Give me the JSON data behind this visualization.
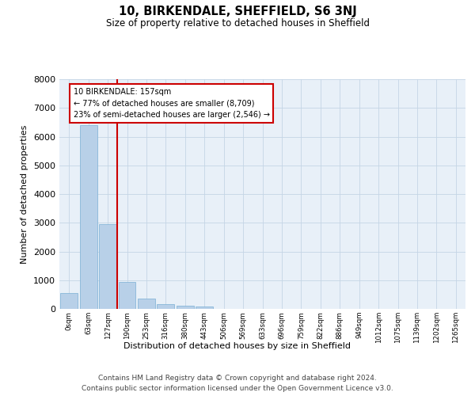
{
  "title": "10, BIRKENDALE, SHEFFIELD, S6 3NJ",
  "subtitle": "Size of property relative to detached houses in Sheffield",
  "xlabel": "Distribution of detached houses by size in Sheffield",
  "ylabel": "Number of detached properties",
  "footer_line1": "Contains HM Land Registry data © Crown copyright and database right 2024.",
  "footer_line2": "Contains public sector information licensed under the Open Government Licence v3.0.",
  "annotation_line1": "10 BIRKENDALE: 157sqm",
  "annotation_line2": "← 77% of detached houses are smaller (8,709)",
  "annotation_line3": "23% of semi-detached houses are larger (2,546) →",
  "bar_labels": [
    "0sqm",
    "63sqm",
    "127sqm",
    "190sqm",
    "253sqm",
    "316sqm",
    "380sqm",
    "443sqm",
    "506sqm",
    "569sqm",
    "633sqm",
    "696sqm",
    "759sqm",
    "822sqm",
    "886sqm",
    "949sqm",
    "1012sqm",
    "1075sqm",
    "1139sqm",
    "1202sqm",
    "1265sqm"
  ],
  "bar_values": [
    560,
    6400,
    2950,
    950,
    360,
    175,
    100,
    80,
    0,
    0,
    0,
    0,
    0,
    0,
    0,
    0,
    0,
    0,
    0,
    0,
    0
  ],
  "bar_color": "#b8d0e8",
  "bar_edge_color": "#7aafd4",
  "vline_color": "#cc0000",
  "annotation_box_color": "#cc0000",
  "background_color": "#e8f0f8",
  "grid_color": "#c5d5e5",
  "ylim": [
    0,
    8000
  ],
  "yticks": [
    0,
    1000,
    2000,
    3000,
    4000,
    5000,
    6000,
    7000,
    8000
  ]
}
